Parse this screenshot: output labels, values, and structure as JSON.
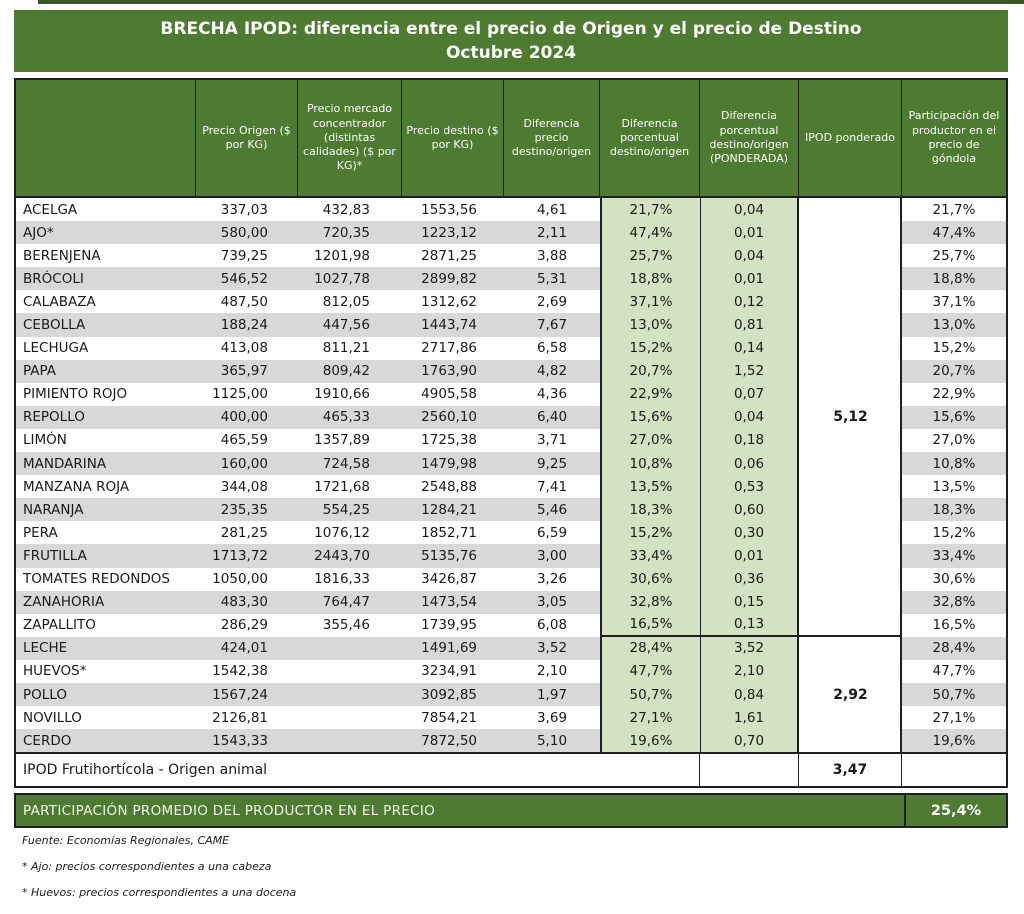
{
  "title": {
    "line1": "BRECHA IPOD: diferencia entre el precio de Origen y el precio de Destino",
    "line2": "Octubre 2024"
  },
  "table": {
    "columns": [
      "",
      "Precio Origen ($ por KG)",
      "Precio mercado concentrador (distintas calidades) ($ por KG)*",
      "Precio destino ($ por KG)",
      "Diferencia precio destino/origen",
      "Diferencia porcentual destino/origen",
      "Diferencia porcentual destino/origen (PONDERADA)",
      "IPOD ponderado",
      "Participación del productor en el precio de góndola"
    ],
    "rows": [
      {
        "name": "ACELGA",
        "origen": "337,03",
        "mercado": "432,83",
        "destino": "1553,56",
        "dif": "4,61",
        "pct": "21,7%",
        "pond": "0,04",
        "part": "21,7%"
      },
      {
        "name": "AJO*",
        "origen": "580,00",
        "mercado": "720,35",
        "destino": "1223,12",
        "dif": "2,11",
        "pct": "47,4%",
        "pond": "0,01",
        "part": "47,4%"
      },
      {
        "name": "BERENJENA",
        "origen": "739,25",
        "mercado": "1201,98",
        "destino": "2871,25",
        "dif": "3,88",
        "pct": "25,7%",
        "pond": "0,04",
        "part": "25,7%"
      },
      {
        "name": "BRÓCOLI",
        "origen": "546,52",
        "mercado": "1027,78",
        "destino": "2899,82",
        "dif": "5,31",
        "pct": "18,8%",
        "pond": "0,01",
        "part": "18,8%"
      },
      {
        "name": "CALABAZA",
        "origen": "487,50",
        "mercado": "812,05",
        "destino": "1312,62",
        "dif": "2,69",
        "pct": "37,1%",
        "pond": "0,12",
        "part": "37,1%"
      },
      {
        "name": "CEBOLLA",
        "origen": "188,24",
        "mercado": "447,56",
        "destino": "1443,74",
        "dif": "7,67",
        "pct": "13,0%",
        "pond": "0,81",
        "part": "13,0%"
      },
      {
        "name": "LECHUGA",
        "origen": "413,08",
        "mercado": "811,21",
        "destino": "2717,86",
        "dif": "6,58",
        "pct": "15,2%",
        "pond": "0,14",
        "part": "15,2%"
      },
      {
        "name": "PAPA",
        "origen": "365,97",
        "mercado": "809,42",
        "destino": "1763,90",
        "dif": "4,82",
        "pct": "20,7%",
        "pond": "1,52",
        "part": "20,7%"
      },
      {
        "name": "PIMIENTO ROJO",
        "origen": "1125,00",
        "mercado": "1910,66",
        "destino": "4905,58",
        "dif": "4,36",
        "pct": "22,9%",
        "pond": "0,07",
        "part": "22,9%"
      },
      {
        "name": "REPOLLO",
        "origen": "400,00",
        "mercado": "465,33",
        "destino": "2560,10",
        "dif": "6,40",
        "pct": "15,6%",
        "pond": "0,04",
        "part": "15,6%"
      },
      {
        "name": "LIMÓN",
        "origen": "465,59",
        "mercado": "1357,89",
        "destino": "1725,38",
        "dif": "3,71",
        "pct": "27,0%",
        "pond": "0,18",
        "part": "27,0%"
      },
      {
        "name": "MANDARINA",
        "origen": "160,00",
        "mercado": "724,58",
        "destino": "1479,98",
        "dif": "9,25",
        "pct": "10,8%",
        "pond": "0,06",
        "part": "10,8%"
      },
      {
        "name": "MANZANA ROJA",
        "origen": "344,08",
        "mercado": "1721,68",
        "destino": "2548,88",
        "dif": "7,41",
        "pct": "13,5%",
        "pond": "0,53",
        "part": "13,5%"
      },
      {
        "name": "NARANJA",
        "origen": "235,35",
        "mercado": "554,25",
        "destino": "1284,21",
        "dif": "5,46",
        "pct": "18,3%",
        "pond": "0,60",
        "part": "18,3%"
      },
      {
        "name": "PERA",
        "origen": "281,25",
        "mercado": "1076,12",
        "destino": "1852,71",
        "dif": "6,59",
        "pct": "15,2%",
        "pond": "0,30",
        "part": "15,2%"
      },
      {
        "name": "FRUTILLA",
        "origen": "1713,72",
        "mercado": "2443,70",
        "destino": "5135,76",
        "dif": "3,00",
        "pct": "33,4%",
        "pond": "0,01",
        "part": "33,4%"
      },
      {
        "name": "TOMATES REDONDOS",
        "origen": "1050,00",
        "mercado": "1816,33",
        "destino": "3426,87",
        "dif": "3,26",
        "pct": "30,6%",
        "pond": "0,36",
        "part": "30,6%"
      },
      {
        "name": "ZANAHORIA",
        "origen": "483,30",
        "mercado": "764,47",
        "destino": "1473,54",
        "dif": "3,05",
        "pct": "32,8%",
        "pond": "0,15",
        "part": "32,8%"
      },
      {
        "name": "ZAPALLITO",
        "origen": "286,29",
        "mercado": "355,46",
        "destino": "1739,95",
        "dif": "6,08",
        "pct": "16,5%",
        "pond": "0,13",
        "part": "16,5%"
      },
      {
        "name": "LECHE",
        "origen": "424,01",
        "mercado": "",
        "destino": "1491,69",
        "dif": "3,52",
        "pct": "28,4%",
        "pond": "3,52",
        "part": "28,4%"
      },
      {
        "name": "HUEVOS*",
        "origen": "1542,38",
        "mercado": "",
        "destino": "3234,91",
        "dif": "2,10",
        "pct": "47,7%",
        "pond": "2,10",
        "part": "47,7%"
      },
      {
        "name": "POLLO",
        "origen": "1567,24",
        "mercado": "",
        "destino": "3092,85",
        "dif": "1,97",
        "pct": "50,7%",
        "pond": "0,84",
        "part": "50,7%"
      },
      {
        "name": "NOVILLO",
        "origen": "2126,81",
        "mercado": "",
        "destino": "7854,21",
        "dif": "3,69",
        "pct": "27,1%",
        "pond": "1,61",
        "part": "27,1%"
      },
      {
        "name": "CERDO",
        "origen": "1543,33",
        "mercado": "",
        "destino": "7872,50",
        "dif": "5,10",
        "pct": "19,6%",
        "pond": "0,70",
        "part": "19,6%"
      }
    ],
    "ipod_ponderado": {
      "frutihorticola": "5,12",
      "origen_animal": "2,92"
    },
    "summary_row": {
      "label": "IPOD Frutihortícola - Origen animal",
      "value": "3,47"
    }
  },
  "footer_bar": {
    "label": "PARTICIPACIÓN PROMEDIO DEL PRODUCTOR EN EL PRECIO",
    "value": "25,4%"
  },
  "footnotes": [
    "Fuente: Economías Regionales, CAME",
    "* Ajo: precios correspondientes a una cabeza",
    "* Huevos: precios correspondientes a una docena"
  ],
  "colors": {
    "green": "#4e7b31",
    "light_green": "#d2e2c2",
    "stripe_gray": "#d8d8d8",
    "border": "#1f1f1f"
  },
  "chart_data": {
    "type": "table",
    "title": "BRECHA IPOD: diferencia entre el precio de Origen y el precio de Destino — Octubre 2024",
    "row_fields": [
      "producto",
      "precio_origen",
      "precio_mercado_concentrador",
      "precio_destino",
      "diferencia_precio_destino_origen",
      "diferencia_porcentual_pct",
      "diferencia_porcentual_ponderada",
      "participacion_productor_pct"
    ],
    "rows": [
      [
        "ACELGA",
        337.03,
        432.83,
        1553.56,
        4.61,
        21.7,
        0.04,
        21.7
      ],
      [
        "AJO*",
        580.0,
        720.35,
        1223.12,
        2.11,
        47.4,
        0.01,
        47.4
      ],
      [
        "BERENJENA",
        739.25,
        1201.98,
        2871.25,
        3.88,
        25.7,
        0.04,
        25.7
      ],
      [
        "BRÓCOLI",
        546.52,
        1027.78,
        2899.82,
        5.31,
        18.8,
        0.01,
        18.8
      ],
      [
        "CALABAZA",
        487.5,
        812.05,
        1312.62,
        2.69,
        37.1,
        0.12,
        37.1
      ],
      [
        "CEBOLLA",
        188.24,
        447.56,
        1443.74,
        7.67,
        13.0,
        0.81,
        13.0
      ],
      [
        "LECHUGA",
        413.08,
        811.21,
        2717.86,
        6.58,
        15.2,
        0.14,
        15.2
      ],
      [
        "PAPA",
        365.97,
        809.42,
        1763.9,
        4.82,
        20.7,
        1.52,
        20.7
      ],
      [
        "PIMIENTO ROJO",
        1125.0,
        1910.66,
        4905.58,
        4.36,
        22.9,
        0.07,
        22.9
      ],
      [
        "REPOLLO",
        400.0,
        465.33,
        2560.1,
        6.4,
        15.6,
        0.04,
        15.6
      ],
      [
        "LIMÓN",
        465.59,
        1357.89,
        1725.38,
        3.71,
        27.0,
        0.18,
        27.0
      ],
      [
        "MANDARINA",
        160.0,
        724.58,
        1479.98,
        9.25,
        10.8,
        0.06,
        10.8
      ],
      [
        "MANZANA ROJA",
        344.08,
        1721.68,
        2548.88,
        7.41,
        13.5,
        0.53,
        13.5
      ],
      [
        "NARANJA",
        235.35,
        554.25,
        1284.21,
        5.46,
        18.3,
        0.6,
        18.3
      ],
      [
        "PERA",
        281.25,
        1076.12,
        1852.71,
        6.59,
        15.2,
        0.3,
        15.2
      ],
      [
        "FRUTILLA",
        1713.72,
        2443.7,
        5135.76,
        3.0,
        33.4,
        0.01,
        33.4
      ],
      [
        "TOMATES REDONDOS",
        1050.0,
        1816.33,
        3426.87,
        3.26,
        30.6,
        0.36,
        30.6
      ],
      [
        "ZANAHORIA",
        483.3,
        764.47,
        1473.54,
        3.05,
        32.8,
        0.15,
        32.8
      ],
      [
        "ZAPALLITO",
        286.29,
        355.46,
        1739.95,
        6.08,
        16.5,
        0.13,
        16.5
      ],
      [
        "LECHE",
        424.01,
        null,
        1491.69,
        3.52,
        28.4,
        3.52,
        28.4
      ],
      [
        "HUEVOS*",
        1542.38,
        null,
        3234.91,
        2.1,
        47.7,
        2.1,
        47.7
      ],
      [
        "POLLO",
        1567.24,
        null,
        3092.85,
        1.97,
        50.7,
        0.84,
        50.7
      ],
      [
        "NOVILLO",
        2126.81,
        null,
        7854.21,
        3.69,
        27.1,
        1.61,
        27.1
      ],
      [
        "CERDO",
        1543.33,
        null,
        7872.5,
        5.1,
        19.6,
        0.7,
        19.6
      ]
    ],
    "ipod_ponderado_frutihorticola": 5.12,
    "ipod_ponderado_origen_animal": 2.92,
    "ipod_frutihorticola_origen_animal": 3.47,
    "participacion_promedio_productor_pct": 25.4
  }
}
